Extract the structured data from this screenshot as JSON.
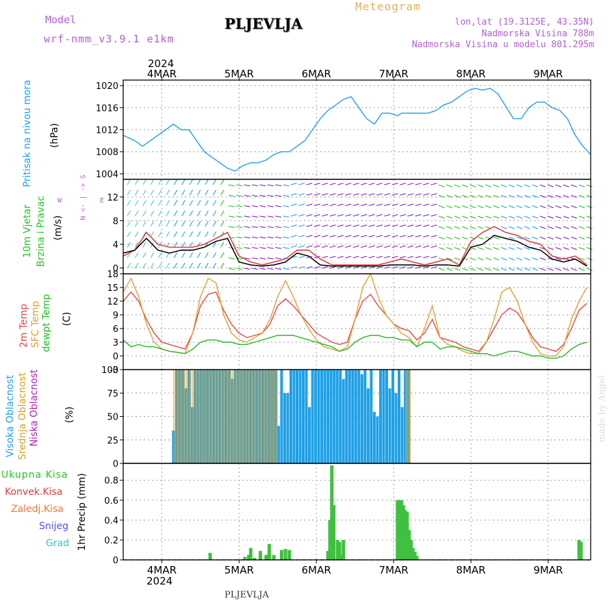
{
  "header": {
    "title": "Meteogram",
    "model_label": "Model",
    "model_name": "wrf-nmm_v3.9.1 e1km",
    "station": "PLJEVLJA",
    "coords": "lon,lat (19.3125E, 43.35N)",
    "altitude": "Nadmorska Visina 788m",
    "model_altitude": "Nadmorska Visina u modelu 801.295m",
    "year_top": "2024",
    "year_bottom": "2024",
    "footer_station": "PLJEVLJA",
    "credit": "made by Angel"
  },
  "colors": {
    "pressure": "#1ea0e6",
    "wind_title": "#22c422",
    "wind_speed": "#e03c3c",
    "gust": "#000000",
    "t2m": "#e04848",
    "sfc": "#e0a030",
    "dewpt": "#22b822",
    "cloud_high": "#1ea0e6",
    "cloud_mid": "#d4a030",
    "cloud_low": "#b020b0",
    "precip_total": "#40c040",
    "precip_conv": "#e03c3c",
    "precip_frz": "#f07830",
    "snow": "#5050e0",
    "graupel": "#30c8c8"
  },
  "date_labels": [
    "4MAR",
    "5MAR",
    "6MAR",
    "7MAR",
    "8MAR",
    "9MAR"
  ],
  "chart_data": [
    {
      "type": "line",
      "panel": "pressure",
      "ylabel": "(hPa)",
      "side_labels": [
        "Pritisak na nivou mora"
      ],
      "ylim": [
        1003,
        1021
      ],
      "yticks": [
        1004,
        1008,
        1012,
        1016,
        1020
      ],
      "x_days": [
        0,
        0.3,
        0.5,
        0.7,
        0.9,
        1.1,
        1.3,
        1.5,
        1.7,
        1.9,
        2.1,
        2.3,
        2.5,
        2.7,
        2.9,
        3.1,
        3.3,
        3.5,
        3.7,
        3.9,
        4.1,
        4.3,
        4.5,
        4.7,
        4.9,
        5.1,
        5.3,
        5.5,
        5.7,
        5.9,
        6.1,
        6.3,
        6.5,
        6.7,
        6.9,
        7.1,
        7.2,
        7.4,
        7.6,
        7.8,
        7.9,
        8.1,
        8.3,
        8.5,
        8.7,
        8.9,
        9.1,
        9.3,
        9.5,
        9.7,
        10.1,
        10.3,
        10.5,
        10.7,
        10.9,
        11.1,
        11.3,
        11.5,
        11.7,
        11.9,
        12.1
      ],
      "series": [
        {
          "values": [
            1011,
            1010,
            1009,
            1010,
            1011,
            1012,
            1013,
            1012,
            1012,
            1010,
            1008,
            1007,
            1006,
            1005,
            1004.5,
            1005.5,
            1006,
            1006,
            1006.5,
            1007.5,
            1008,
            1008,
            1009,
            1010,
            1012,
            1014,
            1015.5,
            1016.5,
            1017.5,
            1018,
            1016,
            1014,
            1013,
            1015,
            1015,
            1014.5,
            1015,
            1015,
            1015,
            1015,
            1015,
            1015.5,
            1016.5,
            1017,
            1018,
            1019,
            1019.5,
            1019.2,
            1019.5,
            1018.5,
            1014,
            1014,
            1016,
            1017,
            1017,
            1016,
            1015.5,
            1014,
            1011,
            1009,
            1007.5
          ]
        }
      ]
    },
    {
      "type": "line",
      "panel": "wind",
      "ylabel": "(m/s)",
      "side_labels": [
        "10m Vjetar",
        "Brzina i Pravac"
      ],
      "compass_label": "N <- | -> S",
      "compass_w": "W",
      "compass_e": "E",
      "ylim": [
        -1,
        15
      ],
      "yticks": [
        0,
        4,
        8,
        12
      ],
      "x_days": [
        0,
        0.3,
        0.6,
        0.9,
        1.2,
        1.5,
        1.8,
        2.1,
        2.4,
        2.7,
        3.0,
        3.3,
        3.6,
        3.9,
        4.2,
        4.5,
        4.8,
        5.1,
        5.4,
        5.7,
        6.0,
        6.3,
        6.6,
        6.9,
        7.2,
        7.5,
        7.8,
        8.1,
        8.4,
        8.7,
        9.0,
        9.3,
        9.6,
        9.9,
        10.2,
        10.5,
        10.8,
        11.1,
        11.4,
        11.7,
        12.0
      ],
      "series": [
        {
          "name": "speed",
          "values": [
            2,
            3,
            6,
            4,
            3.5,
            3.5,
            3.5,
            4,
            5,
            6,
            2,
            1,
            0.5,
            1,
            1.5,
            3,
            3,
            1.5,
            0.5,
            0.5,
            0.5,
            0.5,
            0.5,
            1,
            1.5,
            1,
            0.5,
            1,
            1.5,
            0.5,
            4.5,
            6,
            7,
            6,
            5.5,
            4.5,
            4,
            2,
            1.5,
            2,
            0.5
          ]
        },
        {
          "name": "gust",
          "values": [
            2.5,
            3,
            5,
            3,
            2.5,
            3,
            3,
            3.5,
            4.5,
            5,
            1,
            0.5,
            0.3,
            0.5,
            1,
            2.5,
            2,
            0.5,
            0.3,
            0.3,
            0.3,
            0.3,
            0.3,
            0.5,
            0.5,
            0.5,
            0.3,
            0.5,
            0.5,
            0.3,
            3.5,
            4,
            5.5,
            5,
            4.5,
            3.5,
            3,
            1.5,
            1,
            1.5,
            0.3
          ]
        }
      ]
    },
    {
      "type": "line",
      "panel": "temperature",
      "ylabel": "(C)",
      "side_labels": [
        "2m Temp",
        "SFC Temp",
        "dewpt Temp"
      ],
      "ylim": [
        -3,
        18
      ],
      "yticks": [
        -3,
        0,
        3,
        6,
        9,
        12,
        15,
        18
      ],
      "x_days": [
        0,
        0.2,
        0.4,
        0.6,
        0.8,
        1.0,
        1.2,
        1.4,
        1.6,
        1.8,
        2.0,
        2.2,
        2.4,
        2.6,
        2.8,
        3.0,
        3.2,
        3.4,
        3.6,
        3.8,
        4.0,
        4.2,
        4.4,
        4.6,
        4.8,
        5.0,
        5.2,
        5.4,
        5.6,
        5.8,
        6.0,
        6.2,
        6.4,
        6.6,
        6.8,
        7.0,
        7.2,
        7.4,
        7.6,
        7.8,
        8.0,
        8.2,
        8.4,
        8.6,
        8.8,
        9.0,
        9.2,
        9.4,
        9.6,
        9.8,
        10.0,
        10.2,
        10.4,
        10.6,
        10.8,
        11.0,
        11.2,
        11.4,
        11.6,
        11.8,
        12.0
      ],
      "series": [
        {
          "name": "t2m",
          "values": [
            12,
            14,
            12,
            8,
            5,
            3,
            2.5,
            2,
            1.5,
            5,
            11,
            13.5,
            14,
            10,
            7,
            5,
            4,
            4.5,
            5,
            7,
            11,
            12.5,
            11,
            9,
            7,
            5,
            4,
            3,
            2.5,
            3,
            8,
            12,
            13.5,
            11,
            9,
            7,
            6,
            5.5,
            3.5,
            5,
            8,
            4,
            3.5,
            3,
            2,
            1.5,
            1,
            3,
            6,
            9,
            10.5,
            9.5,
            7,
            4,
            2,
            1.5,
            1,
            2.5,
            6,
            10,
            11.5
          ]
        },
        {
          "name": "sfc",
          "values": [
            14,
            17,
            13,
            7,
            3,
            1.5,
            1,
            0.8,
            0.5,
            5,
            13,
            17,
            16,
            9,
            5,
            3.5,
            3,
            4,
            5,
            8,
            13,
            16.5,
            13,
            9,
            6,
            3.5,
            2,
            1.5,
            1,
            2,
            8,
            15,
            18,
            13,
            9,
            7,
            5,
            4,
            2,
            6,
            11,
            4,
            2.5,
            2,
            1,
            0.5,
            0.5,
            3,
            8,
            14,
            15,
            12,
            7,
            3,
            0.5,
            0,
            0,
            2,
            8,
            12,
            15
          ]
        },
        {
          "name": "dewpt",
          "values": [
            3.5,
            2,
            2.5,
            2,
            2,
            1.5,
            1,
            0.8,
            0.5,
            1.5,
            3,
            3.5,
            3.5,
            3,
            3,
            2.5,
            2.5,
            3,
            3.5,
            4,
            4.5,
            4.5,
            4.5,
            4,
            3.5,
            3,
            2.5,
            2,
            1,
            1.5,
            3,
            4,
            4.5,
            4.5,
            4,
            4,
            3.5,
            3.5,
            2,
            3,
            3,
            1.5,
            2,
            2,
            1.5,
            1,
            0.5,
            0.5,
            0,
            0.5,
            1,
            1,
            0.5,
            0,
            0,
            -0.5,
            -0.5,
            0,
            1.5,
            2.5,
            3
          ]
        }
      ]
    },
    {
      "type": "bar",
      "panel": "clouds",
      "ylabel": "(%)",
      "side_labels": [
        "Visoka Oblacnost",
        "Srednja Oblacnost",
        "Niska Oblacnost"
      ],
      "ylim": [
        0,
        100
      ],
      "yticks": [
        0,
        25,
        50,
        75,
        100
      ],
      "x_start": 1.3,
      "x_step": 0.08,
      "series": [
        {
          "name": "high",
          "values": [
            35,
            100,
            100,
            100,
            80,
            100,
            60,
            100,
            100,
            100,
            100,
            100,
            100,
            100,
            100,
            100,
            100,
            100,
            100,
            90,
            100,
            100,
            100,
            100,
            100,
            100,
            100,
            100,
            100,
            100,
            100,
            100,
            100,
            100,
            40,
            100,
            75,
            75,
            100,
            100,
            100,
            100,
            100,
            100,
            60,
            100,
            100,
            100,
            100,
            100,
            100,
            100,
            100,
            100,
            100,
            90,
            100,
            100,
            100,
            100,
            100,
            95,
            100,
            80,
            100,
            55,
            50,
            100,
            100,
            100,
            80,
            100,
            75,
            100,
            60,
            100,
            100
          ]
        },
        {
          "name": "mid",
          "values": [
            100,
            100,
            100,
            100,
            100,
            100,
            100,
            100,
            100,
            100,
            100,
            100,
            100,
            100,
            100,
            100,
            100,
            100,
            100,
            100,
            100,
            100,
            100,
            100,
            100,
            100,
            100,
            100,
            100,
            100,
            100,
            100,
            100,
            100,
            0,
            0,
            0,
            0,
            0,
            0,
            0,
            0,
            0,
            0,
            0,
            0,
            0,
            0,
            0,
            0,
            0,
            0,
            0,
            0,
            0,
            0,
            0,
            0,
            0,
            0,
            0,
            0,
            0,
            0,
            0,
            0,
            0,
            0,
            0,
            0,
            0,
            0,
            0,
            0,
            0,
            100,
            100
          ]
        },
        {
          "name": "low",
          "values": [
            0,
            0,
            0,
            0,
            0,
            0,
            0,
            0,
            0,
            0,
            0,
            0,
            0,
            0,
            0,
            0,
            0,
            0,
            0,
            0,
            0,
            0,
            0,
            0,
            0,
            0,
            0,
            0,
            0,
            0,
            0,
            0,
            0,
            0,
            0,
            0,
            0,
            0,
            0,
            0,
            0,
            0,
            0,
            0,
            0,
            0,
            0,
            0,
            0,
            0,
            0,
            0,
            0,
            0,
            0,
            0,
            0,
            0,
            0,
            0,
            0,
            0,
            0,
            0,
            0,
            0,
            0,
            0,
            0,
            0,
            0,
            0,
            0,
            0,
            0,
            0,
            0
          ]
        }
      ]
    },
    {
      "type": "bar",
      "panel": "precip",
      "ylabel": "1hr Precip (mm)",
      "legend": [
        "Ukupna Kisa",
        "Konvek.Kisa",
        "Zaledj.Kisa",
        "Snijeg",
        "Grad"
      ],
      "ylim": [
        0,
        0.97
      ],
      "yticks": [
        0,
        0.2,
        0.4,
        0.6,
        0.8
      ],
      "ytick_labels": [
        "0",
        "0.2",
        "0.4",
        "0.6",
        "0.8"
      ],
      "bars": [
        {
          "x": 2.25,
          "v": 0.07
        },
        {
          "x": 3.15,
          "v": 0.03
        },
        {
          "x": 3.25,
          "v": 0.05
        },
        {
          "x": 3.3,
          "v": 0.12
        },
        {
          "x": 3.4,
          "v": 0.02
        },
        {
          "x": 3.55,
          "v": 0.09
        },
        {
          "x": 3.7,
          "v": 0.05
        },
        {
          "x": 3.78,
          "v": 0.16
        },
        {
          "x": 3.9,
          "v": 0.05
        },
        {
          "x": 4.1,
          "v": 0.1
        },
        {
          "x": 4.2,
          "v": 0.11
        },
        {
          "x": 4.3,
          "v": 0.1
        },
        {
          "x": 5.3,
          "v": 0.09
        },
        {
          "x": 5.35,
          "v": 0.4
        },
        {
          "x": 5.4,
          "v": 0.95
        },
        {
          "x": 5.45,
          "v": 0.55
        },
        {
          "x": 5.55,
          "v": 0.2
        },
        {
          "x": 5.6,
          "v": 0.18
        },
        {
          "x": 5.65,
          "v": 0.05
        },
        {
          "x": 5.7,
          "v": 0.2
        },
        {
          "x": 7.1,
          "v": 0.6
        },
        {
          "x": 7.15,
          "v": 0.6
        },
        {
          "x": 7.2,
          "v": 0.6
        },
        {
          "x": 7.25,
          "v": 0.55
        },
        {
          "x": 7.3,
          "v": 0.5
        },
        {
          "x": 7.35,
          "v": 0.48
        },
        {
          "x": 7.4,
          "v": 0.3
        },
        {
          "x": 7.45,
          "v": 0.2
        },
        {
          "x": 7.5,
          "v": 0.12
        },
        {
          "x": 7.55,
          "v": 0.08
        },
        {
          "x": 7.6,
          "v": 0.04
        },
        {
          "x": 11.8,
          "v": 0.2
        },
        {
          "x": 11.85,
          "v": 0.18
        }
      ]
    }
  ]
}
